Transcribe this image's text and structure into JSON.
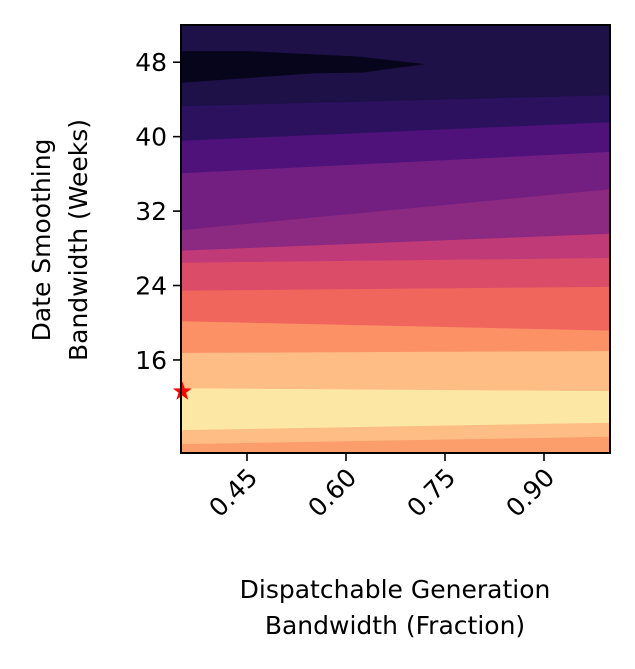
{
  "chart_data": {
    "type": "heatmap",
    "subtype": "filled-contour",
    "colormap": "magma",
    "title": "",
    "xlabel_lines": [
      "Dispatchable Generation",
      "Bandwidth (Fraction)"
    ],
    "ylabel_lines": [
      "Date Smoothing",
      "Bandwidth (Weeks)"
    ],
    "xlim": [
      0.35,
      1.0
    ],
    "ylim": [
      6,
      52
    ],
    "xticks": [
      0.45,
      0.6,
      0.75,
      0.9
    ],
    "xtick_labels": [
      "0.45",
      "0.60",
      "0.75",
      "0.90"
    ],
    "yticks": [
      16,
      24,
      32,
      40,
      48
    ],
    "ytick_labels": [
      "16",
      "24",
      "32",
      "40",
      "48"
    ],
    "grid": false,
    "contour_bands": [
      {
        "level": 1,
        "color": "#fc9d6c",
        "left": [
          6,
          7.0
        ],
        "right": [
          6,
          7.8
        ]
      },
      {
        "level": 2,
        "color": "#fdbd84",
        "left": [
          7.0,
          8.5
        ],
        "right": [
          7.8,
          9.3
        ]
      },
      {
        "level": 3,
        "color": "#fde7a5",
        "left": [
          8.5,
          13.0
        ],
        "right": [
          9.3,
          12.7
        ]
      },
      {
        "level": 4,
        "color": "#fdbd84",
        "left": [
          13.0,
          16.8
        ],
        "right": [
          12.7,
          17.0
        ]
      },
      {
        "level": 5,
        "color": "#fc9166",
        "left": [
          16.8,
          20.2
        ],
        "right": [
          17.0,
          19.2
        ]
      },
      {
        "level": 6,
        "color": "#f0665c",
        "left": [
          20.2,
          23.5
        ],
        "right": [
          19.2,
          23.9
        ]
      },
      {
        "level": 7,
        "color": "#db4c69",
        "left": [
          23.5,
          26.5
        ],
        "right": [
          23.9,
          27.0
        ]
      },
      {
        "level": 8,
        "color": "#bf3a77",
        "left": [
          26.5,
          27.8
        ],
        "right": [
          27.0,
          29.6
        ]
      },
      {
        "level": 9,
        "color": "#8c2981",
        "left": [
          27.8,
          30.0
        ],
        "right": [
          29.6,
          34.4
        ]
      },
      {
        "level": 10,
        "color": "#721f81",
        "left": [
          30.0,
          36.1
        ],
        "right": [
          34.4,
          38.4
        ]
      },
      {
        "level": 11,
        "color": "#4f127b",
        "left": [
          36.1,
          39.6
        ],
        "right": [
          38.4,
          41.6
        ]
      },
      {
        "level": 12,
        "color": "#2c115f",
        "left": [
          39.6,
          43.3
        ],
        "right": [
          41.6,
          44.5
        ]
      },
      {
        "level": 13,
        "color": "#1d1147",
        "left": [
          43.3,
          52
        ],
        "right": [
          44.5,
          52
        ]
      }
    ],
    "dark_wedge": {
      "color": "#06051b",
      "points": [
        [
          0.35,
          45.8
        ],
        [
          0.55,
          46.8
        ],
        [
          0.625,
          46.9
        ],
        [
          0.72,
          47.8
        ],
        [
          0.62,
          48.6
        ],
        [
          0.45,
          49.2
        ],
        [
          0.35,
          49.2
        ]
      ]
    },
    "marker": {
      "symbol": "star",
      "color": "#ff0000",
      "x": 0.352,
      "y": 12.6
    }
  }
}
